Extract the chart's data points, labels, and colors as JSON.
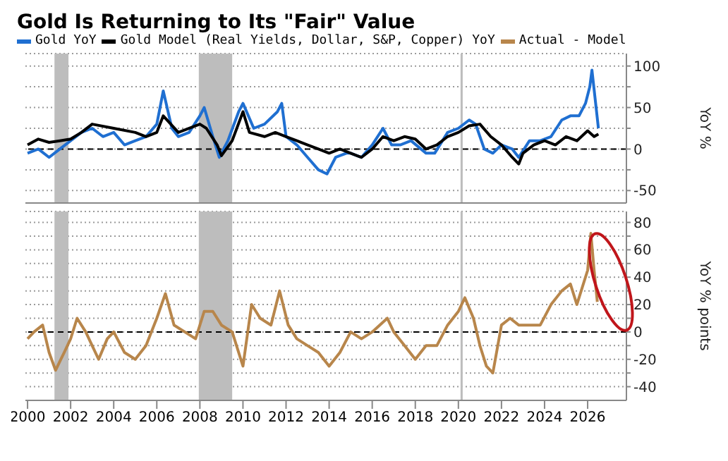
{
  "chart_data": [
    {
      "type": "line",
      "title": "Gold Is Returning to Its \"Fair\" Value",
      "ylabel": "YoY %",
      "legend": "top",
      "grid": "y",
      "tick_labels": "y",
      "line_style": "solid",
      "marker": "none",
      "xlim": [
        1999.9,
        2027.8
      ],
      "ylim": [
        -65,
        115
      ],
      "yticks": [
        -50,
        {
          "value": -25,
          "label": null
        },
        0,
        {
          "value": 25,
          "label": null
        },
        50,
        {
          "value": 75,
          "label": null
        },
        100
      ],
      "bands": [
        {
          "axis": "x",
          "from": 2001.25,
          "to": 2001.9,
          "color": "#bdbdbd"
        },
        {
          "axis": "x",
          "from": 2007.95,
          "to": 2009.5,
          "color": "#bdbdbd"
        },
        {
          "axis": "x",
          "from": 2020.1,
          "to": 2020.2,
          "color": "#bdbdbd"
        }
      ],
      "ref_lines": [
        {
          "axis": "y",
          "value": 0,
          "color": "#000000",
          "line_style": "dashed"
        }
      ],
      "series": [
        {
          "name": "Gold YoY",
          "color": "#1f6fd1",
          "x": [
            2000,
            2000.5,
            2001,
            2001.5,
            2002,
            2002.5,
            2003,
            2003.5,
            2004,
            2004.5,
            2005,
            2005.5,
            2006,
            2006.3,
            2006.7,
            2007,
            2007.5,
            2008,
            2008.2,
            2008.6,
            2008.9,
            2009.3,
            2009.8,
            2010,
            2010.5,
            2011,
            2011.6,
            2011.8,
            2012,
            2012.5,
            2013,
            2013.5,
            2013.9,
            2014.3,
            2014.8,
            2015,
            2015.5,
            2016,
            2016.5,
            2016.9,
            2017.3,
            2017.8,
            2018.5,
            2018.9,
            2019.5,
            2020,
            2020.5,
            2020.8,
            2021.2,
            2021.6,
            2022,
            2022.5,
            2022.8,
            2023.3,
            2023.8,
            2024.3,
            2024.8,
            2025.2,
            2025.6,
            2025.9,
            2026.1,
            2026.2,
            2026.35,
            2026.5
          ],
          "values": [
            -5,
            0,
            -10,
            0,
            10,
            20,
            25,
            15,
            20,
            5,
            10,
            15,
            30,
            70,
            25,
            15,
            20,
            40,
            50,
            15,
            -10,
            10,
            45,
            55,
            25,
            30,
            45,
            55,
            15,
            5,
            -10,
            -25,
            -30,
            -10,
            -5,
            -5,
            -10,
            5,
            25,
            5,
            5,
            10,
            -5,
            -5,
            20,
            25,
            35,
            30,
            0,
            -5,
            5,
            0,
            -10,
            10,
            10,
            15,
            35,
            40,
            40,
            55,
            75,
            95,
            60,
            25
          ]
        },
        {
          "name": "Gold Model (Real Yields, Dollar, S&P, Copper) YoY",
          "color": "#000000",
          "x": [
            2000,
            2000.5,
            2001,
            2001.5,
            2002,
            2002.5,
            2003,
            2004,
            2005,
            2005.5,
            2006,
            2006.3,
            2007,
            2008,
            2008.3,
            2008.8,
            2009,
            2009.5,
            2010,
            2010.3,
            2011,
            2011.5,
            2012,
            2012.5,
            2013,
            2013.5,
            2014,
            2014.5,
            2015,
            2015.5,
            2016,
            2016.5,
            2017,
            2017.5,
            2018,
            2018.5,
            2019,
            2019.5,
            2020,
            2020.5,
            2021,
            2021.5,
            2022,
            2022.5,
            2022.8,
            2023,
            2023.5,
            2024,
            2024.5,
            2025,
            2025.5,
            2026,
            2026.3,
            2026.5
          ],
          "values": [
            5,
            12,
            8,
            10,
            12,
            20,
            30,
            25,
            20,
            15,
            20,
            40,
            20,
            30,
            25,
            5,
            -8,
            10,
            45,
            20,
            15,
            20,
            15,
            10,
            5,
            0,
            -5,
            0,
            -5,
            -10,
            0,
            15,
            10,
            15,
            12,
            0,
            5,
            15,
            20,
            28,
            30,
            15,
            5,
            -10,
            -18,
            -5,
            5,
            10,
            5,
            15,
            10,
            22,
            15,
            18
          ]
        }
      ]
    },
    {
      "type": "line",
      "ylabel": "YoY % points",
      "grid": "y",
      "line_style": "solid",
      "marker": "none",
      "xlim": [
        1999.9,
        2027.8
      ],
      "xticks": [
        2000,
        2002,
        2004,
        2006,
        2008,
        2010,
        2012,
        2014,
        2016,
        2018,
        2020,
        2022,
        2024,
        2026
      ],
      "ylim": [
        -50,
        88
      ],
      "yticks": [
        -40,
        {
          "value": -30,
          "label": null
        },
        -20,
        {
          "value": -10,
          "label": null
        },
        0,
        {
          "value": 10,
          "label": null
        },
        20,
        {
          "value": 30,
          "label": null
        },
        40,
        {
          "value": 50,
          "label": null
        },
        60,
        {
          "value": 70,
          "label": null
        },
        80
      ],
      "bands": [
        {
          "axis": "x",
          "from": 2001.25,
          "to": 2001.9,
          "color": "#bdbdbd"
        },
        {
          "axis": "x",
          "from": 2007.95,
          "to": 2009.5,
          "color": "#bdbdbd"
        },
        {
          "axis": "x",
          "from": 2020.1,
          "to": 2020.2,
          "color": "#bdbdbd"
        }
      ],
      "ref_lines": [
        {
          "axis": "y",
          "value": 0,
          "color": "#000000",
          "line_style": "dashed"
        }
      ],
      "series": [
        {
          "name": "Actual - Model",
          "color": "#b8864b",
          "x": [
            2000,
            2000.3,
            2000.7,
            2001,
            2001.3,
            2001.7,
            2002,
            2002.3,
            2002.7,
            2003,
            2003.3,
            2003.7,
            2004,
            2004.5,
            2005,
            2005.5,
            2006,
            2006.4,
            2006.8,
            2007.3,
            2007.8,
            2008.2,
            2008.6,
            2009,
            2009.5,
            2010,
            2010.4,
            2010.8,
            2011.3,
            2011.7,
            2012.1,
            2012.5,
            2013,
            2013.5,
            2014,
            2014.5,
            2015,
            2015.5,
            2016,
            2016.7,
            2017,
            2017.5,
            2018,
            2018.5,
            2019,
            2019.5,
            2020,
            2020.3,
            2020.7,
            2021,
            2021.3,
            2021.6,
            2022,
            2022.4,
            2022.8,
            2023.3,
            2023.8,
            2024.3,
            2024.8,
            2025.2,
            2025.5,
            2025.8,
            2026,
            2026.15,
            2026.3,
            2026.45
          ],
          "values": [
            -5,
            0,
            5,
            -15,
            -28,
            -15,
            -5,
            10,
            0,
            -10,
            -20,
            -5,
            0,
            -15,
            -20,
            -10,
            10,
            28,
            5,
            0,
            -5,
            15,
            15,
            5,
            0,
            -25,
            20,
            10,
            5,
            30,
            5,
            -5,
            -10,
            -15,
            -25,
            -15,
            0,
            -5,
            0,
            10,
            0,
            -10,
            -20,
            -10,
            -10,
            5,
            15,
            25,
            10,
            -10,
            -25,
            -30,
            5,
            10,
            5,
            5,
            5,
            20,
            30,
            35,
            20,
            35,
            45,
            72,
            45,
            22
          ]
        }
      ]
    }
  ]
}
